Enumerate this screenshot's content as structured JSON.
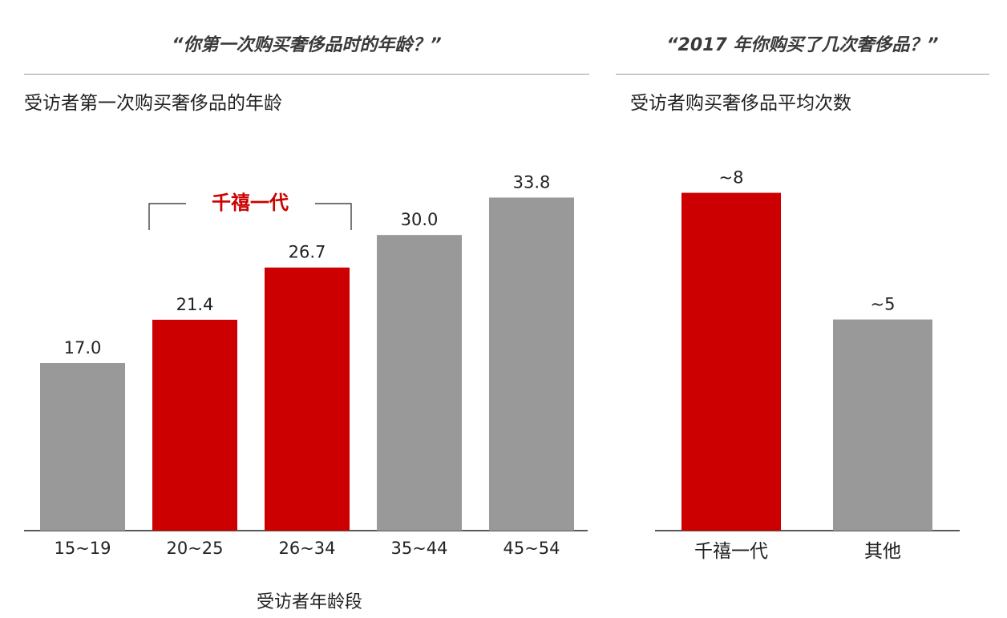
{
  "left_panel": {
    "title": "“你第一次购买奢侈品时的年龄？”",
    "subtitle": "受访者第一次购买奢侈品的年龄",
    "xlabel": "受访者年龄段",
    "bracket_label": "千禧一代"
  },
  "right_panel": {
    "title": "“2017 年你购买了几次奢侈品？”",
    "subtitle": "受访者购买奢侈品平均次数"
  },
  "colors": {
    "highlight": "#cc0000",
    "neutral": "#999999",
    "axis": "#222222",
    "rule": "#9b9b9b"
  },
  "chart_data": [
    {
      "type": "bar",
      "title": "受访者第一次购买奢侈品的年龄",
      "xlabel": "受访者年龄段",
      "ylabel": "",
      "categories": [
        "15~19",
        "20~25",
        "26~34",
        "35~44",
        "45~54"
      ],
      "values": [
        17.0,
        21.4,
        26.7,
        30.0,
        33.8
      ],
      "data_labels": [
        "17.0",
        "21.4",
        "26.7",
        "30.0",
        "33.8"
      ],
      "highlight": [
        false,
        true,
        true,
        false,
        false
      ],
      "annotation": {
        "text": "千禧一代",
        "spans": [
          "20~25",
          "26~34"
        ]
      },
      "ylim": [
        0,
        34
      ],
      "grid": false
    },
    {
      "type": "bar",
      "title": "受访者购买奢侈品平均次数",
      "xlabel": "",
      "ylabel": "",
      "categories": [
        "千禧一代",
        "其他"
      ],
      "values": [
        8,
        5
      ],
      "data_labels": [
        "~8",
        "~5"
      ],
      "highlight": [
        true,
        false
      ],
      "ylim": [
        0,
        8.2
      ],
      "grid": false
    }
  ]
}
